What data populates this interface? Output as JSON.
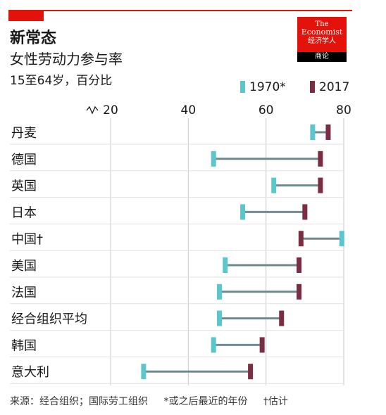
{
  "title": "新常态",
  "subtitle": "女性劳动力参与率",
  "unit": "15至64岁，百分比",
  "logo": {
    "line1": "The",
    "line2": "Economist",
    "line3": "经济学人",
    "line4": "商论"
  },
  "colors": {
    "accent": "#e3120b",
    "series1970": "#5bc6cc",
    "series2017": "#7b2d43",
    "connector": "#6f8a8e"
  },
  "footer": {
    "source": "来源：经合组织；国际劳工组织",
    "note1": "*或之后最近的年份",
    "note2": "†估计"
  },
  "chart_data": {
    "type": "dot-range",
    "title": "新常态",
    "subtitle": "女性劳动力参与率",
    "unit": "15至64岁，百分比",
    "xlim": [
      20,
      80
    ],
    "xticks": [
      "20",
      "40",
      "60",
      "80"
    ],
    "axis_break": true,
    "grid": true,
    "legend_position": "top-right",
    "series": [
      {
        "name": "1970*",
        "values": [
          72,
          46.5,
          62,
          54,
          79.5,
          49.5,
          48,
          48,
          46.5,
          28.5
        ]
      },
      {
        "name": "2017",
        "values": [
          76,
          74,
          74,
          70,
          69,
          68.5,
          68.5,
          64,
          59,
          56
        ]
      }
    ],
    "categories": [
      "丹麦",
      "德国",
      "英国",
      "日本",
      "中国†",
      "美国",
      "法国",
      "经合组织平均",
      "韩国",
      "意大利"
    ]
  }
}
